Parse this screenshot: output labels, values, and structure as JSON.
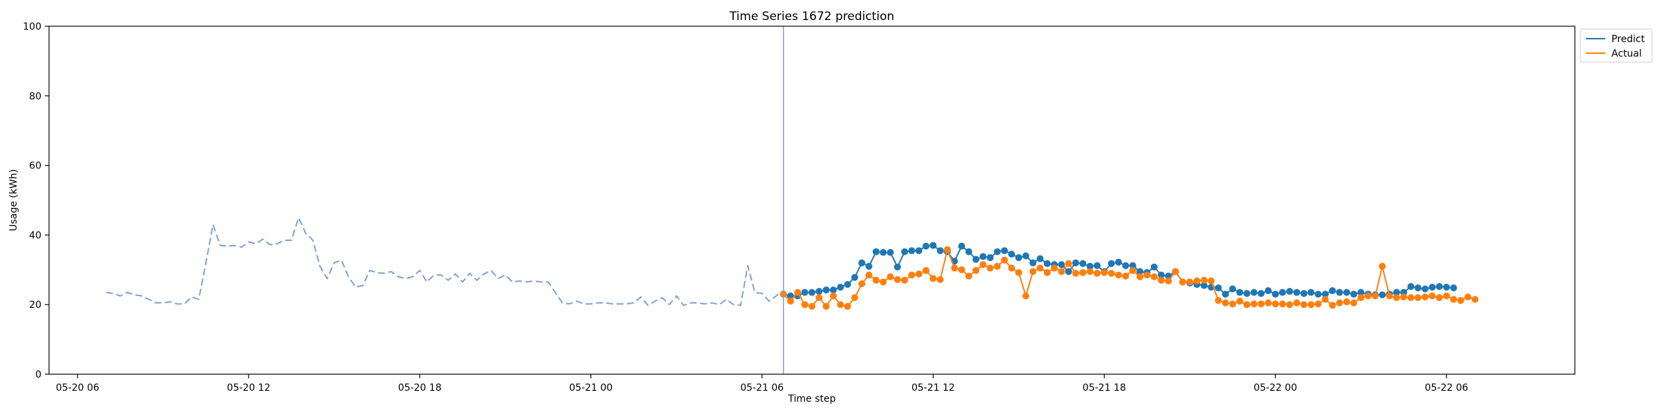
{
  "chart_data": {
    "type": "line",
    "title": "Time Series 1672 prediction",
    "xlabel": "Time step",
    "ylabel": "Usage (kWh)",
    "ylim": [
      0,
      100
    ],
    "xlim_hours": [
      -1.0,
      52.5
    ],
    "yticks": [
      0,
      20,
      40,
      60,
      80,
      100
    ],
    "xticks": [
      {
        "label": "05-20 06",
        "hour": 0
      },
      {
        "label": "05-20 12",
        "hour": 6
      },
      {
        "label": "05-20 18",
        "hour": 12
      },
      {
        "label": "05-21 00",
        "hour": 18
      },
      {
        "label": "05-21 06",
        "hour": 24
      },
      {
        "label": "05-21 12",
        "hour": 30
      },
      {
        "label": "05-21 18",
        "hour": 36
      },
      {
        "label": "05-22 00",
        "hour": 42
      },
      {
        "label": "05-22 06",
        "hour": 48
      }
    ],
    "x_axis_origin": "05-20 06:00",
    "x_unit": "hours",
    "grid": false,
    "legend_position": "outside-top-right",
    "forecast_start_hour": 24.75,
    "series": [
      {
        "name": "Predict",
        "color": "#1f77b4",
        "marker": "circle",
        "style": "solid",
        "start_hour": 24.75,
        "step_hours": 0.25,
        "values": [
          23.0,
          22.5,
          22.5,
          23.5,
          23.5,
          23.8,
          24.2,
          24.2,
          25.0,
          25.8,
          27.8,
          32.0,
          31.0,
          35.2,
          35.0,
          35.0,
          30.8,
          35.2,
          35.5,
          35.5,
          36.8,
          37.0,
          35.5,
          35.2,
          32.5,
          36.8,
          35.2,
          33.0,
          33.8,
          33.5,
          35.2,
          35.5,
          34.5,
          33.5,
          34.0,
          32.0,
          33.2,
          31.8,
          31.5,
          31.5,
          29.5,
          32.0,
          31.8,
          31.0,
          31.2,
          29.5,
          31.8,
          32.2,
          31.2,
          31.2,
          29.5,
          29.2,
          30.8,
          28.5,
          28.2,
          29.5,
          26.5,
          26.2,
          25.8,
          25.5,
          25.0,
          24.8,
          23.0,
          24.5,
          23.5,
          23.2,
          23.5,
          23.2,
          24.0,
          23.0,
          23.5,
          23.8,
          23.5,
          23.2,
          23.5,
          23.0,
          23.0,
          24.0,
          23.5,
          23.5,
          23.0,
          23.5,
          23.0,
          22.8,
          22.8,
          23.0,
          23.5,
          23.5,
          25.2,
          24.8,
          24.5,
          25.0,
          25.2,
          25.0,
          24.8
        ]
      },
      {
        "name": "Actual",
        "color": "#ff7f0e",
        "marker": "circle",
        "style": "solid",
        "start_hour": 24.75,
        "step_hours": 0.25,
        "values": [
          23.0,
          21.0,
          23.5,
          20.0,
          19.5,
          22.0,
          19.5,
          22.5,
          20.0,
          19.5,
          22.0,
          26.0,
          28.5,
          27.0,
          26.5,
          28.0,
          27.2,
          27.0,
          28.5,
          28.8,
          29.8,
          27.5,
          27.2,
          35.8,
          30.5,
          30.0,
          28.2,
          29.8,
          31.5,
          30.5,
          31.0,
          32.8,
          30.5,
          29.2,
          22.5,
          29.5,
          30.5,
          29.2,
          30.5,
          29.5,
          31.8,
          29.0,
          29.2,
          29.5,
          29.0,
          29.2,
          29.0,
          28.5,
          28.2,
          29.8,
          28.0,
          28.5,
          28.0,
          27.0,
          26.8,
          29.5,
          26.5,
          26.5,
          26.8,
          27.0,
          26.8,
          21.2,
          20.5,
          20.2,
          21.0,
          20.0,
          20.2,
          20.2,
          20.5,
          20.2,
          20.2,
          20.0,
          20.5,
          20.0,
          20.0,
          20.2,
          21.5,
          19.8,
          20.5,
          20.8,
          20.5,
          22.0,
          22.5,
          22.5,
          31.0,
          22.5,
          22.0,
          22.2,
          22.0,
          22.0,
          22.2,
          22.5,
          22.0,
          22.5,
          21.5,
          21.2,
          22.2,
          21.5
        ]
      },
      {
        "name": "History",
        "color": "#7f9fd0",
        "marker": "none",
        "style": "dashed",
        "start_hour": 1.0,
        "step_hours": 0.25,
        "values": [
          23.5,
          23.2,
          22.5,
          23.5,
          22.8,
          22.5,
          21.5,
          20.5,
          20.5,
          20.8,
          20.2,
          20.2,
          22.2,
          21.5,
          32.0,
          43.0,
          37.0,
          36.8,
          37.0,
          36.5,
          38.0,
          37.5,
          38.8,
          37.2,
          37.5,
          38.5,
          38.5,
          45.0,
          40.5,
          38.5,
          31.0,
          27.5,
          32.0,
          32.8,
          28.0,
          25.0,
          25.5,
          29.8,
          29.2,
          29.0,
          29.5,
          28.0,
          27.5,
          28.0,
          29.8,
          26.5,
          28.5,
          28.5,
          27.0,
          28.8,
          26.5,
          29.0,
          27.0,
          28.8,
          29.8,
          27.5,
          28.5,
          26.5,
          26.8,
          26.5,
          26.8,
          26.5,
          26.5,
          23.5,
          20.5,
          20.2,
          21.0,
          20.2,
          20.2,
          20.5,
          20.5,
          20.2,
          20.2,
          20.2,
          20.5,
          22.2,
          19.8,
          21.0,
          22.0,
          20.0,
          22.5,
          19.8,
          20.5,
          20.5,
          20.2,
          20.5,
          20.0,
          21.5,
          20.0,
          19.8,
          31.2,
          23.5,
          23.2,
          21.0,
          22.5,
          24.0,
          21.2,
          22.5
        ]
      }
    ]
  }
}
